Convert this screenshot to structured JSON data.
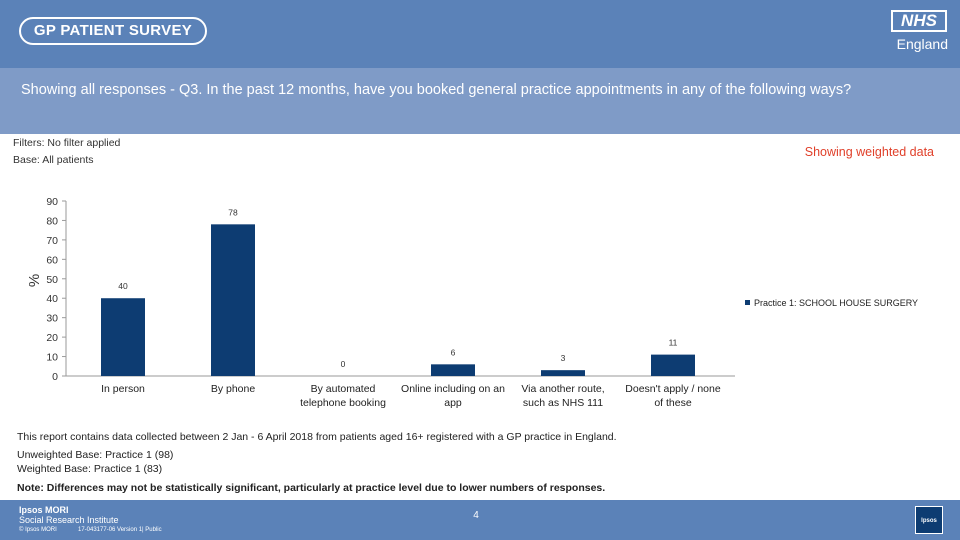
{
  "header": {
    "logo_text": "GP PATIENT SURVEY",
    "nhs_badge": "NHS",
    "nhs_region": "England"
  },
  "question": "Showing all responses - Q3.  In the past 12 months, have you booked  general practice appointments in any of  the following ways?",
  "meta": {
    "filters": "Filters: No filter applied",
    "base": "Base: All patients",
    "weighted_note": "Showing weighted data"
  },
  "colors": {
    "header_bg": "#5b82b8",
    "question_bg": "#7f9bc7",
    "bar": "#0d3c72",
    "weighted_note": "#e0402a"
  },
  "chart_data": {
    "type": "bar",
    "title": "",
    "xlabel": "",
    "ylabel": "%",
    "ylim": [
      0,
      90
    ],
    "yticks": [
      0,
      10,
      20,
      30,
      40,
      50,
      60,
      70,
      80,
      90
    ],
    "categories": [
      "In person",
      "By phone",
      "By automated telephone booking",
      "Online including on an app",
      "Via another route, such as NHS 111",
      "Doesn't apply / none of these"
    ],
    "category_lines": [
      [
        "In person"
      ],
      [
        "By phone"
      ],
      [
        "By automated",
        "telephone booking"
      ],
      [
        "Online including on an",
        "app"
      ],
      [
        "Via another route,",
        "such as NHS 111"
      ],
      [
        "Doesn't apply / none",
        "of these"
      ]
    ],
    "series": [
      {
        "name": "Practice 1: SCHOOL HOUSE SURGERY",
        "values": [
          40,
          78,
          0,
          6,
          3,
          11
        ]
      }
    ],
    "legend_position": "right"
  },
  "notes": {
    "collection": "This report contains data collected between 2 Jan - 6 April 2018 from patients aged 16+ registered with a GP practice in England.",
    "unweighted": "Unweighted Base: Practice 1 (98)",
    "weighted": "Weighted Base: Practice 1 (83)",
    "significance": "Note: Differences may not be statistically significant, particularly at practice level due to lower numbers of responses."
  },
  "footer": {
    "org_name": "Ipsos MORI",
    "org_sub": "Social Research Institute",
    "copyright": "© Ipsos MORI",
    "reference": "17-043177-06 Version 1| Public",
    "page_number": "4",
    "logo_text": "Ipsos"
  }
}
